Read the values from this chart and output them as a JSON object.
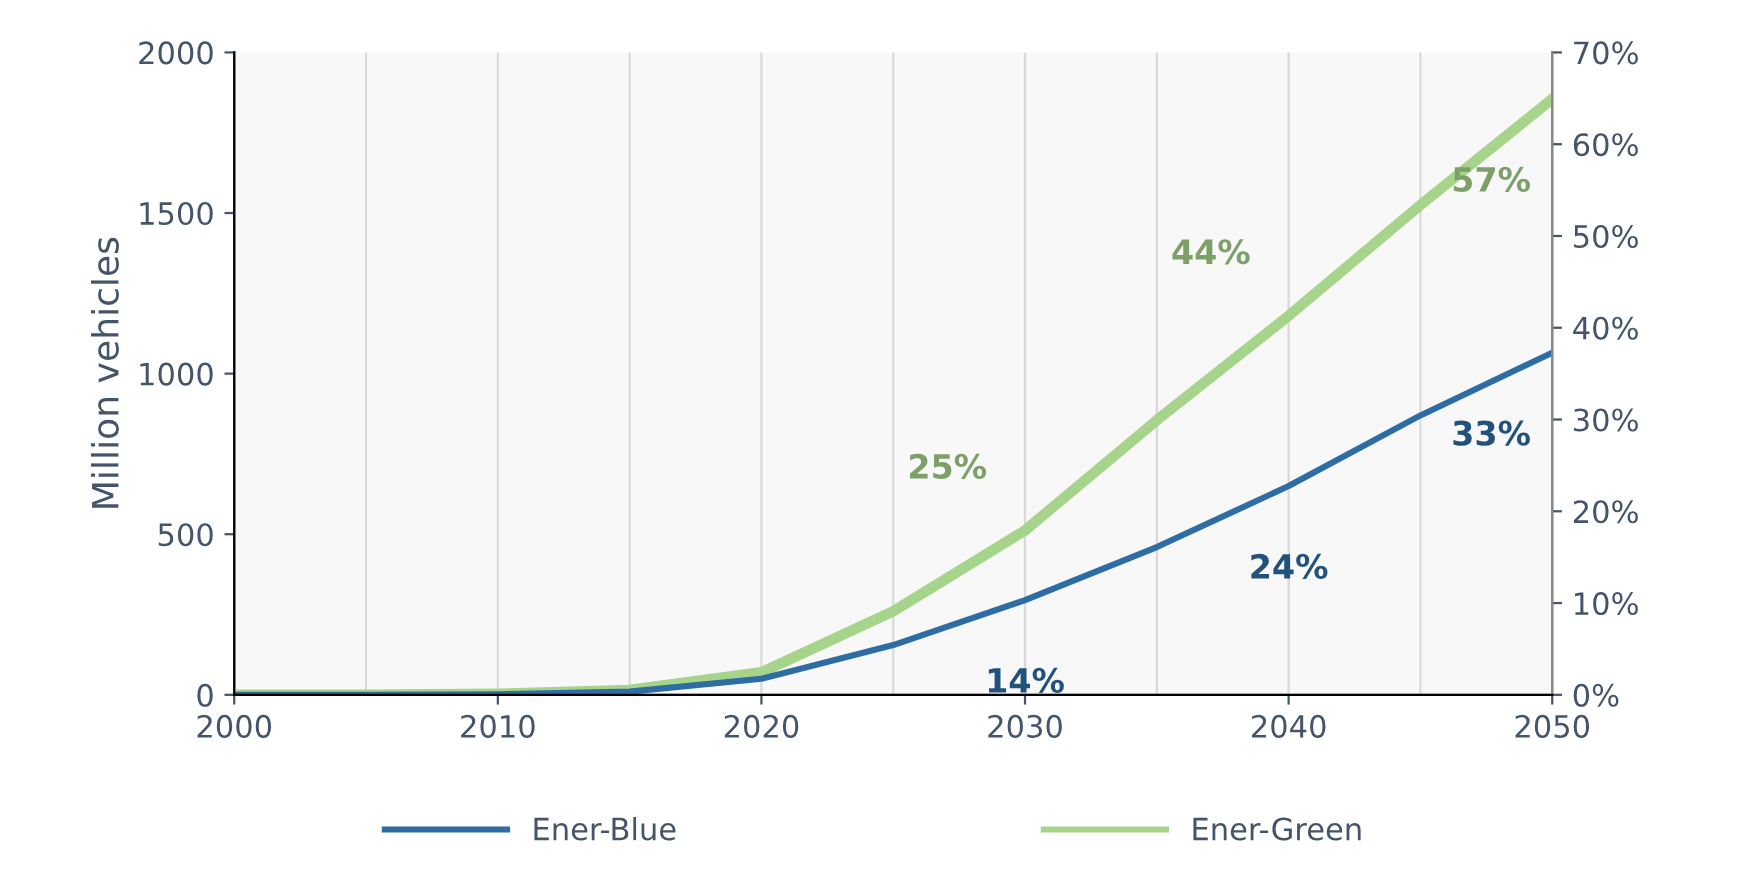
{
  "chart_data": {
    "type": "line",
    "ylabel": "Million vehicles",
    "x": [
      2000,
      2005,
      2010,
      2015,
      2020,
      2025,
      2030,
      2035,
      2040,
      2045,
      2050
    ],
    "series": [
      {
        "name": "Ener-Blue",
        "color": "#2e6da4",
        "values": [
          0,
          0,
          2,
          10,
          50,
          155,
          295,
          460,
          650,
          870,
          1065
        ]
      },
      {
        "name": "Ener-Green",
        "color": "#a6d48a",
        "values": [
          0,
          0,
          3,
          15,
          70,
          260,
          512,
          855,
          1180,
          1525,
          1855
        ]
      }
    ],
    "xlim": [
      2000,
      2050
    ],
    "xticks": [
      2000,
      2010,
      2020,
      2030,
      2040,
      2050
    ],
    "ylim": [
      0,
      2000
    ],
    "yticks": [
      0,
      500,
      1000,
      1500,
      2000
    ],
    "y2lim": [
      0,
      0.7
    ],
    "y2ticks": [
      {
        "value": 0,
        "label": "0%"
      },
      {
        "value": 0.1,
        "label": "10%"
      },
      {
        "value": 0.2,
        "label": "20%"
      },
      {
        "value": 0.3,
        "label": "30%"
      },
      {
        "value": 0.4,
        "label": "40%"
      },
      {
        "value": 0.5,
        "label": "50%"
      },
      {
        "value": 0.6,
        "label": "60%"
      },
      {
        "value": 0.7,
        "label": "70%"
      }
    ],
    "annotations": [
      {
        "text": "14%",
        "x": 2030,
        "y": 295
      },
      {
        "text": "25%",
        "x": 2030,
        "y": 512
      },
      {
        "text": "24%",
        "x": 2040,
        "y": 650
      },
      {
        "text": "44%",
        "x": 2040,
        "y": 1180
      },
      {
        "text": "33%",
        "x": 2050,
        "y": 1065
      },
      {
        "text": "57%",
        "x": 2050,
        "y": 1855
      }
    ],
    "grid": "x",
    "legend": "bottom",
    "line_style": "solid",
    "marker": "none"
  }
}
